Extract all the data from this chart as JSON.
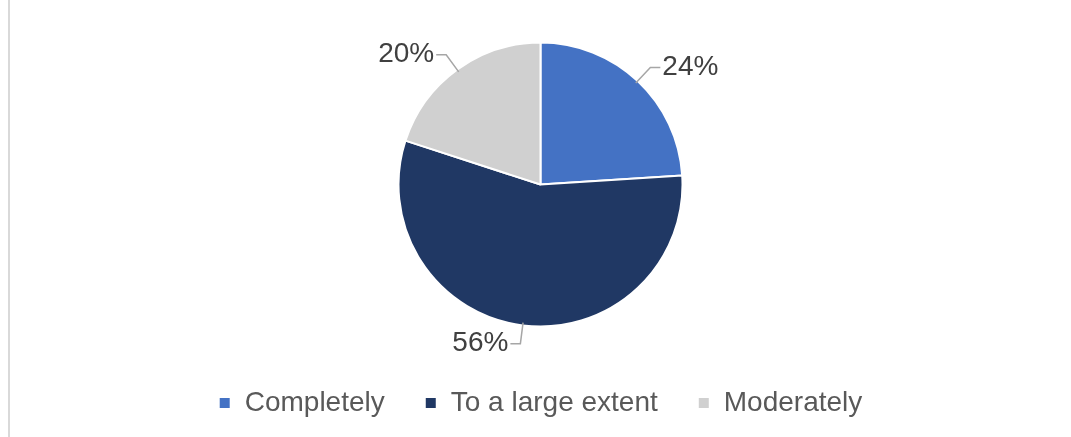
{
  "chart_data": {
    "type": "pie",
    "categories": [
      "Completely",
      "To a large extent",
      "Moderately"
    ],
    "values": [
      24,
      56,
      20
    ],
    "colors": [
      "#4472c4",
      "#203864",
      "#d0d0d0"
    ],
    "value_labels": [
      "24%",
      "56%",
      "20%"
    ],
    "legend": "bottom"
  }
}
